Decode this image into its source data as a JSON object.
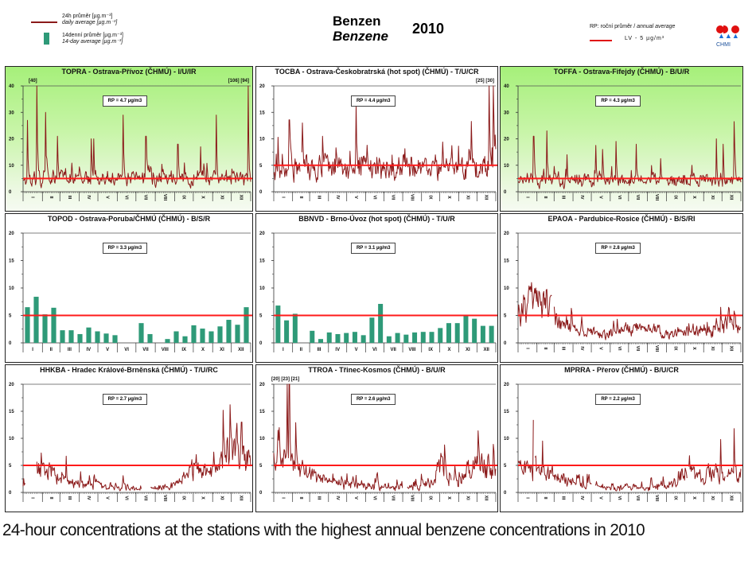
{
  "header": {
    "legend": {
      "daily_cz": "24h průměr [µg.m⁻³]",
      "daily_en": "daily average [µg.m⁻³]",
      "biweekly_cz": "14denní průměr [µg.m⁻³]",
      "biweekly_en": "14-day average [µg.m⁻³]"
    },
    "title_cz": "Benzen",
    "title_en": "Benzene",
    "year": "2010",
    "rp_legend_cz": "RP: roční průměr / ",
    "rp_legend_en": "annual average",
    "lv_label": "LV - 5 µg/m³",
    "logo_label": "CHMI"
  },
  "colors": {
    "daily_line": "#8b1a1a",
    "bars": "#2e9a78",
    "limit_line": "#ff1a1a",
    "green_background": "#a6f07a"
  },
  "caption": "24-hour concentrations at the stations with the highest annual benzene concentrations in 2010",
  "chart_data": [
    {
      "type": "line",
      "id": "TOPRA",
      "title": "TOPRA - Ostrava-Přívoz (ČHMÚ) - I/U/IR",
      "rp": "RP = 4.7 µg/m3",
      "annotations": [
        "[40]",
        "[106] [94]"
      ],
      "background": "green",
      "ylim": [
        0,
        40
      ],
      "yticks": [
        "0",
        "10",
        "20",
        "30",
        "40"
      ],
      "xticks": [
        "I",
        "II",
        "III",
        "IV",
        "V",
        "VI",
        "VII",
        "VIII",
        "IX",
        "X",
        "XI",
        "XII"
      ],
      "limit": 5,
      "peaks": [
        [
          0.02,
          27
        ],
        [
          0.06,
          40
        ],
        [
          0.1,
          30
        ],
        [
          0.15,
          21
        ],
        [
          0.3,
          20
        ],
        [
          0.31,
          20
        ],
        [
          0.44,
          29
        ],
        [
          0.54,
          21
        ],
        [
          0.68,
          18
        ],
        [
          0.78,
          17
        ],
        [
          0.85,
          29
        ],
        [
          0.99,
          40
        ]
      ],
      "base": 4.7,
      "noise": 3.5,
      "gaps": []
    },
    {
      "type": "line",
      "id": "TOCBA",
      "title": "TOCBA - Ostrava-Českobratrská (hot spot) (ČHMÚ) - T/U/CR",
      "rp": "RP = 4.4 µg/m3",
      "annotations": [
        "[25] [30]"
      ],
      "background": "white",
      "ylim": [
        0,
        20
      ],
      "yticks": [
        "0",
        "5",
        "10",
        "15",
        "20"
      ],
      "xticks": [
        "I",
        "II",
        "III",
        "IV",
        "V",
        "VI",
        "VII",
        "VIII",
        "IX",
        "X",
        "XI",
        "XII"
      ],
      "limit": 5,
      "peaks": [
        [
          0.02,
          10.3
        ],
        [
          0.07,
          13.6
        ],
        [
          0.13,
          13
        ],
        [
          0.22,
          10.5
        ],
        [
          0.28,
          8.3
        ],
        [
          0.37,
          16.5
        ],
        [
          0.42,
          8.8
        ],
        [
          0.76,
          9.4
        ],
        [
          0.89,
          13.3
        ],
        [
          0.97,
          20
        ],
        [
          0.99,
          20
        ]
      ],
      "base": 4.4,
      "noise": 2.0,
      "gaps": [
        [
          0.12,
          0.125
        ]
      ]
    },
    {
      "type": "line",
      "id": "TOFFA",
      "title": "TOFFA - Ostrava-Fifejdy (ČHMÚ) - B/U/R",
      "rp": "RP = 4.3 µg/m3",
      "annotations": [],
      "background": "green",
      "ylim": [
        0,
        40
      ],
      "yticks": [
        "0",
        "10",
        "20",
        "30",
        "40"
      ],
      "xticks": [
        "I",
        "II",
        "III",
        "IV",
        "V",
        "VI",
        "VII",
        "VIII",
        "IX",
        "X",
        "XI",
        "XII"
      ],
      "limit": 5,
      "peaks": [
        [
          0.07,
          21
        ],
        [
          0.13,
          23
        ],
        [
          0.22,
          14
        ],
        [
          0.35,
          17.5
        ],
        [
          0.38,
          16
        ],
        [
          0.44,
          19
        ],
        [
          0.53,
          18
        ],
        [
          0.64,
          12.5
        ],
        [
          0.78,
          10
        ],
        [
          0.89,
          20
        ],
        [
          0.92,
          18
        ],
        [
          0.97,
          26.5
        ]
      ],
      "base": 4.3,
      "noise": 3.0,
      "gaps": [
        [
          0.65,
          0.665
        ]
      ]
    },
    {
      "type": "bar",
      "id": "TOPOD",
      "title": "TOPOD - Ostrava-Poruba/ČHMÚ (ČHMÚ) - B/S/R",
      "rp": "RP = 3.3 µg/m3",
      "annotations": [],
      "background": "white",
      "ylim": [
        0,
        20
      ],
      "yticks": [
        "0",
        "5",
        "10",
        "15",
        "20"
      ],
      "xticks": [
        "I",
        "II",
        "III",
        "IV",
        "V",
        "VI",
        "VII",
        "VIII",
        "IX",
        "X",
        "XI",
        "XII"
      ],
      "limit": 5,
      "values": [
        6.5,
        8.4,
        5.2,
        6.4,
        2.3,
        2.3,
        1.6,
        2.8,
        2.1,
        1.7,
        1.4,
        null,
        null,
        3.6,
        1.6,
        null,
        0.7,
        2.1,
        1.2,
        3.2,
        2.6,
        2.1,
        3.0,
        4.2,
        3.3,
        6.5
      ]
    },
    {
      "type": "bar",
      "id": "BBNVD",
      "title": "BBNVD - Brno-Úvoz (hot spot) (ČHMÚ) - T/U/R",
      "rp": "RP = 3.1 µg/m3",
      "annotations": [],
      "background": "white",
      "ylim": [
        0,
        20
      ],
      "yticks": [
        "0",
        "5",
        "10",
        "15",
        "20"
      ],
      "xticks": [
        "I",
        "II",
        "III",
        "IV",
        "V",
        "VI",
        "VII",
        "VIII",
        "IX",
        "X",
        "XI",
        "XII"
      ],
      "limit": 5,
      "values": [
        6.8,
        4.1,
        5.3,
        null,
        2.2,
        0.7,
        1.9,
        1.6,
        1.8,
        2.0,
        1.4,
        4.6,
        7.1,
        1.2,
        1.8,
        1.5,
        1.9,
        2.0,
        2.0,
        2.7,
        3.6,
        3.6,
        4.9,
        4.4,
        3.1,
        3.1
      ]
    },
    {
      "type": "line",
      "id": "EPAOA",
      "title": "EPAOA - Pardubice-Rosice (ČHMÚ) - B/S/RI",
      "rp": "RP = 2.8 µg/m3",
      "annotations": [],
      "background": "white",
      "ylim": [
        0,
        20
      ],
      "yticks": [
        "0",
        "5",
        "10",
        "15",
        "20"
      ],
      "xticks": [
        "I",
        "II",
        "III",
        "IV",
        "V",
        "VI",
        "VII",
        "VIII",
        "IX",
        "X",
        "XI",
        "XII"
      ],
      "limit": 5,
      "profile": [
        [
          0,
          5
        ],
        [
          0.05,
          7
        ],
        [
          0.08,
          8
        ],
        [
          0.15,
          6.5
        ],
        [
          0.17,
          4
        ],
        [
          0.24,
          3
        ],
        [
          0.28,
          2
        ],
        [
          0.4,
          1.8
        ],
        [
          0.5,
          2.6
        ],
        [
          0.6,
          2.2
        ],
        [
          0.7,
          1.5
        ],
        [
          0.76,
          2.5
        ],
        [
          0.85,
          2.2
        ],
        [
          0.9,
          3
        ],
        [
          0.95,
          3.5
        ],
        [
          1,
          3
        ]
      ],
      "peaks": [
        [
          0.06,
          11
        ],
        [
          0.08,
          10
        ],
        [
          0.15,
          8.6
        ],
        [
          0.24,
          6.3
        ],
        [
          0.91,
          6.5
        ],
        [
          0.97,
          5.8
        ]
      ],
      "noise": 1.2,
      "gaps": [
        [
          0.15,
          0.16
        ]
      ]
    },
    {
      "type": "line",
      "id": "HHKBA",
      "title": "HHKBA - Hradec Králové-Brněnská (ČHMÚ) - T/U/RC",
      "rp": "RP = 2.7 µg/m3",
      "annotations": [],
      "background": "white",
      "ylim": [
        0,
        20
      ],
      "yticks": [
        "0",
        "5",
        "10",
        "15",
        "20"
      ],
      "xticks": [
        "I",
        "II",
        "III",
        "IV",
        "V",
        "VI",
        "VII",
        "VIII",
        "IX",
        "X",
        "XI",
        "XII"
      ],
      "limit": 5,
      "profile": [
        [
          0,
          1
        ],
        [
          0.07,
          4
        ],
        [
          0.15,
          3
        ],
        [
          0.2,
          1.6
        ],
        [
          0.3,
          1.5
        ],
        [
          0.45,
          0.8
        ],
        [
          0.55,
          0.6
        ],
        [
          0.65,
          1
        ],
        [
          0.7,
          2.5
        ],
        [
          0.78,
          4
        ],
        [
          0.85,
          4.5
        ],
        [
          0.9,
          7
        ],
        [
          0.95,
          8
        ],
        [
          1,
          7
        ]
      ],
      "peaks": [
        [
          0.08,
          7.3
        ],
        [
          0.19,
          6.7
        ],
        [
          0.76,
          7
        ],
        [
          0.88,
          15.2
        ],
        [
          0.91,
          16.2
        ],
        [
          0.96,
          13
        ]
      ],
      "noise": 1.4,
      "gaps": [
        [
          0.01,
          0.06
        ],
        [
          0.52,
          0.56
        ]
      ]
    },
    {
      "type": "line",
      "id": "TTROA",
      "title": "TTROA - Třinec-Kosmos (ČHMÚ) - B/U/R",
      "rp": "RP = 2.6 µg/m3",
      "annotations": [
        "[20] [23] [21]"
      ],
      "background": "white",
      "ylim": [
        0,
        20
      ],
      "yticks": [
        "0",
        "5",
        "10",
        "15",
        "20"
      ],
      "xticks": [
        "I",
        "II",
        "III",
        "IV",
        "V",
        "VI",
        "VII",
        "VIII",
        "IX",
        "X",
        "XI",
        "XII"
      ],
      "limit": 5,
      "profile": [
        [
          0,
          6
        ],
        [
          0.06,
          7
        ],
        [
          0.1,
          4
        ],
        [
          0.2,
          2.5
        ],
        [
          0.3,
          1.5
        ],
        [
          0.5,
          0.9
        ],
        [
          0.6,
          0.8
        ],
        [
          0.7,
          1.5
        ],
        [
          0.75,
          5
        ],
        [
          0.8,
          1.5
        ],
        [
          0.85,
          3
        ],
        [
          0.9,
          5
        ],
        [
          1,
          4
        ]
      ],
      "peaks": [
        [
          0.02,
          11.5
        ],
        [
          0.06,
          20
        ],
        [
          0.07,
          20
        ],
        [
          0.1,
          12.9
        ],
        [
          0.77,
          8.8
        ],
        [
          0.92,
          11.4
        ],
        [
          0.99,
          8.9
        ]
      ],
      "noise": 1.3,
      "gaps": [
        [
          0.58,
          0.6
        ],
        [
          0.8,
          0.81
        ]
      ]
    },
    {
      "type": "line",
      "id": "MPRRA",
      "title": "MPRRA - Přerov (ČHMÚ) - B/U/CR",
      "rp": "RP = 2.2 µg/m3",
      "annotations": [],
      "background": "white",
      "ylim": [
        0,
        20
      ],
      "yticks": [
        "0",
        "5",
        "10",
        "15",
        "20"
      ],
      "xticks": [
        "I",
        "II",
        "III",
        "IV",
        "V",
        "VI",
        "VII",
        "VIII",
        "IX",
        "X",
        "XI",
        "XII"
      ],
      "limit": 5,
      "profile": [
        [
          0,
          4.5
        ],
        [
          0.08,
          4
        ],
        [
          0.15,
          3
        ],
        [
          0.25,
          1.6
        ],
        [
          0.35,
          1
        ],
        [
          0.5,
          0.9
        ],
        [
          0.6,
          0.8
        ],
        [
          0.7,
          1.8
        ],
        [
          0.76,
          4
        ],
        [
          0.8,
          2.5
        ],
        [
          0.88,
          3.5
        ],
        [
          0.93,
          3
        ],
        [
          1,
          3
        ]
      ],
      "peaks": [
        [
          0.07,
          13.4
        ],
        [
          0.11,
          9.5
        ],
        [
          0.77,
          6.8
        ],
        [
          0.91,
          9.8
        ],
        [
          0.97,
          11.8
        ]
      ],
      "noise": 1.1,
      "gaps": [
        [
          0.07,
          0.075
        ],
        [
          0.33,
          0.345
        ],
        [
          0.76,
          0.765
        ],
        [
          0.93,
          0.935
        ]
      ]
    }
  ]
}
